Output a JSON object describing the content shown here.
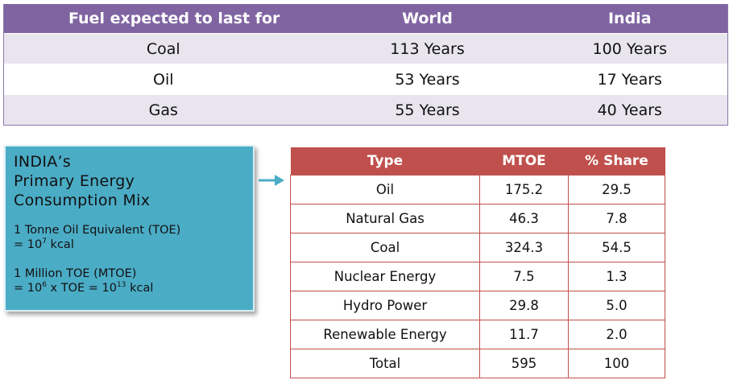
{
  "fuel_table": {
    "headers": [
      "Fuel expected to last for",
      "World",
      "India"
    ],
    "rows": [
      [
        "Coal",
        "113 Years",
        "100 Years"
      ],
      [
        "Oil",
        "53 Years",
        "17 Years"
      ],
      [
        "Gas",
        "55 Years",
        "40 Years"
      ]
    ]
  },
  "info_box": {
    "title_line1": "INDIA’s",
    "title_line2": "Primary Energy",
    "title_line3": "Consumption Mix",
    "toe_line1": "1 Tonne Oil Equivalent (TOE)",
    "toe_line2_prefix": "= 10",
    "toe_line2_exp": "7",
    "toe_line2_suffix": " kcal",
    "mtoe_line1": "1 Million TOE (MTOE)",
    "mtoe_line2_a": "= 10",
    "mtoe_line2_exp1": "6",
    "mtoe_line2_b": " x TOE = 10",
    "mtoe_line2_exp2": "13",
    "mtoe_line2_c": " kcal"
  },
  "energy_table": {
    "headers": [
      "Type",
      "MTOE",
      "% Share"
    ],
    "rows": [
      [
        "Oil",
        "175.2",
        "29.5"
      ],
      [
        "Natural Gas",
        "46.3",
        "7.8"
      ],
      [
        "Coal",
        "324.3",
        "54.5"
      ],
      [
        "Nuclear Energy",
        "7.5",
        "1.3"
      ],
      [
        "Hydro Power",
        "29.8",
        "5.0"
      ],
      [
        "Renewable Energy",
        "11.7",
        "2.0"
      ],
      [
        "Total",
        "595",
        "100"
      ]
    ]
  },
  "colors": {
    "fuel_header": "#8064a2",
    "fuel_shade": "#e8e5ee",
    "info_box": "#4bacc6",
    "energy_header": "#c0504d",
    "arrow": "#4bacc6"
  },
  "icons": {
    "arrow": "right-arrow-icon"
  }
}
